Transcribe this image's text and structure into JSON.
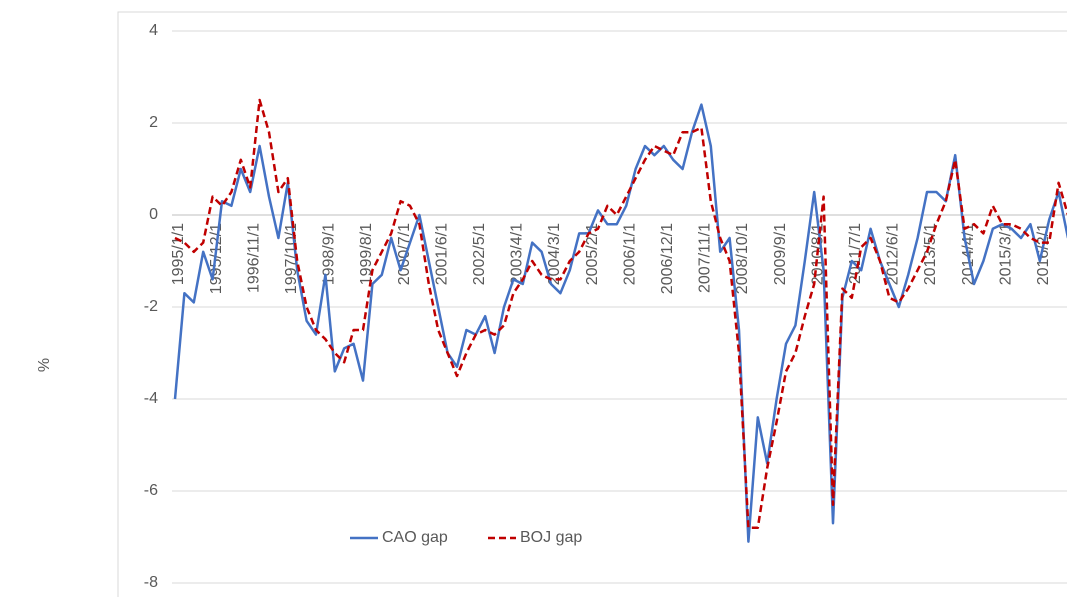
{
  "chart_data": {
    "type": "line",
    "y_label": "%",
    "categories": [
      "1995/1/1",
      null,
      null,
      null,
      "1995/12/1",
      null,
      null,
      null,
      "1996/11/1",
      null,
      null,
      null,
      "1997/10/1",
      null,
      null,
      null,
      "1998/9/1",
      null,
      null,
      null,
      "1999/8/1",
      null,
      null,
      null,
      "2000/7/1",
      null,
      null,
      null,
      "2001/6/1",
      null,
      null,
      null,
      "2002/5/1",
      null,
      null,
      null,
      "2003/4/1",
      null,
      null,
      null,
      "2004/3/1",
      null,
      null,
      null,
      "2005/2/1",
      null,
      null,
      null,
      "2006/1/1",
      null,
      null,
      null,
      "2006/12/1",
      null,
      null,
      null,
      "2007/11/1",
      null,
      null,
      null,
      "2008/10/1",
      null,
      null,
      null,
      "2009/9/1",
      null,
      null,
      null,
      "2010/8/1",
      null,
      null,
      null,
      "2011/7/1",
      null,
      null,
      null,
      "2012/6/1",
      null,
      null,
      null,
      "2013/5/1",
      null,
      null,
      null,
      "2014/4/1",
      null,
      null,
      null,
      "2015/3/1",
      null,
      null,
      null,
      "2016/2/1",
      null,
      null,
      null
    ],
    "series": [
      {
        "name": "CAO gap",
        "color": "#4472c4",
        "dashed": false,
        "values": [
          -4.0,
          -1.7,
          -1.9,
          -0.8,
          -1.4,
          0.3,
          0.2,
          1.0,
          0.5,
          1.5,
          0.4,
          -0.5,
          0.7,
          -1.2,
          -2.3,
          -2.6,
          -1.3,
          -3.4,
          -2.9,
          -2.8,
          -3.6,
          -1.5,
          -1.3,
          -0.5,
          -1.2,
          -0.6,
          0.0,
          -1.0,
          -2.0,
          -3.0,
          -3.3,
          -2.5,
          -2.6,
          -2.2,
          -3.0,
          -2.0,
          -1.4,
          -1.5,
          -0.6,
          -0.8,
          -1.5,
          -1.7,
          -1.2,
          -0.4,
          -0.4,
          0.1,
          -0.2,
          -0.2,
          0.2,
          1.0,
          1.5,
          1.3,
          1.5,
          1.2,
          1.0,
          1.8,
          2.4,
          1.5,
          -0.8,
          -0.5,
          -2.5,
          -7.1,
          -4.4,
          -5.4,
          -4.0,
          -2.8,
          -2.4,
          -1.0,
          0.5,
          -1.2,
          -6.7,
          -1.8,
          -1.0,
          -1.2,
          -0.3,
          -1.0,
          -1.5,
          -2.0,
          -1.3,
          -0.5,
          0.5,
          0.5,
          0.3,
          1.3,
          -0.5,
          -1.5,
          -1.0,
          -0.3,
          -0.2,
          -0.3,
          -0.5,
          -0.2,
          -1.0,
          -0.1,
          0.5,
          -0.5
        ]
      },
      {
        "name": "BOJ gap",
        "color": "#c00000",
        "dashed": true,
        "values": [
          -0.5,
          -0.6,
          -0.8,
          -0.6,
          0.4,
          0.2,
          0.5,
          1.2,
          0.6,
          2.5,
          1.8,
          0.5,
          0.8,
          -1.0,
          -2.0,
          -2.5,
          -2.7,
          -3.0,
          -3.2,
          -2.5,
          -2.5,
          -1.2,
          -0.8,
          -0.4,
          0.3,
          0.2,
          -0.2,
          -1.5,
          -2.5,
          -3.0,
          -3.5,
          -3.0,
          -2.6,
          -2.5,
          -2.6,
          -2.4,
          -1.7,
          -1.4,
          -1.0,
          -1.3,
          -1.4,
          -1.4,
          -1.0,
          -0.8,
          -0.4,
          -0.3,
          0.2,
          0.0,
          0.4,
          0.8,
          1.2,
          1.5,
          1.4,
          1.3,
          1.8,
          1.8,
          1.9,
          0.3,
          -0.5,
          -1.0,
          -3.0,
          -6.8,
          -6.8,
          -5.5,
          -4.5,
          -3.4,
          -3.0,
          -2.2,
          -1.5,
          0.4,
          -6.3,
          -1.6,
          -1.8,
          -0.7,
          -0.5,
          -1.0,
          -1.8,
          -1.9,
          -1.6,
          -1.2,
          -0.8,
          -0.2,
          0.3,
          1.2,
          -0.3,
          -0.2,
          -0.4,
          0.2,
          -0.2,
          -0.2,
          -0.3,
          -0.5,
          -0.6,
          -0.6,
          0.7,
          0.0
        ]
      }
    ],
    "ylim": [
      -8,
      4
    ],
    "yticks": [
      -8,
      -6,
      -4,
      -2,
      0,
      2,
      4
    ],
    "grid": true
  }
}
